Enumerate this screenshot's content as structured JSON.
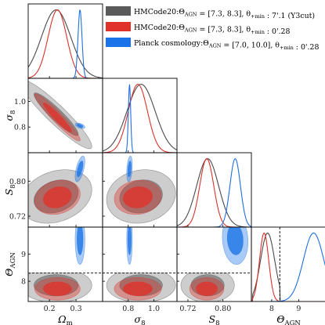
{
  "chart_data": {
    "type": "corner",
    "parameters": [
      {
        "key": "om",
        "label": "Ω",
        "sub": "m",
        "range": [
          0.12,
          0.4
        ],
        "ticks": [
          0.2,
          0.3
        ],
        "tick_labels": [
          "0.2",
          "0.3"
        ]
      },
      {
        "key": "s8",
        "label": "σ",
        "sub": "8",
        "range": [
          0.6,
          1.18
        ],
        "ticks": [
          0.8,
          1.0
        ],
        "tick_labels": [
          "0.8",
          "1.0"
        ]
      },
      {
        "key": "S8",
        "label": "S",
        "sub": "8",
        "range": [
          0.695,
          0.865
        ],
        "ticks": [
          0.72,
          0.8
        ],
        "tick_labels": [
          "0.72",
          "0.80"
        ]
      },
      {
        "key": "ag",
        "label": "Θ",
        "sub": "AGN",
        "range": [
          7.25,
          10.0
        ],
        "ticks": [
          8,
          9
        ],
        "tick_labels": [
          "8",
          "9"
        ]
      }
    ],
    "legend_location": "upper-right",
    "series": [
      {
        "name": "HMCode20:Θ_AGN = [7.3, 8.3], θ_+min : 7′.1 (Y3cut)",
        "legend_text": "HMCode20:Θ$_{AGN}$ = [7.3, 8.3], $θ_{+min}$ : 7$'$.1 (Y3cut)",
        "color": "#4a4a4a",
        "fill": "#5a5a5a",
        "mean": {
          "om": 0.225,
          "s8": 0.9,
          "S8": 0.765,
          "ag": 7.85
        },
        "sd": {
          "om": 0.055,
          "s8": 0.11,
          "S8": 0.025,
          "ag": 0.26
        },
        "corr": {
          "om-s8": -0.93,
          "om-S8": 0.25,
          "s8-S8": 0.12,
          "om-ag": 0.0,
          "s8-ag": 0.0,
          "S8-ag": 0.0
        },
        "prior_bound": {
          "ag": [
            7.3,
            8.3
          ]
        }
      },
      {
        "name": "HMCode20:Θ_AGN = [7.3, 8.3], θ_+min : 0′.28",
        "legend_text": "HMCode20:Θ$_{AGN}$ = [7.3, 8.3], $θ_{+min}$ : 0$'$.28",
        "color": "#d8322a",
        "fill": "#e0322a",
        "mean": {
          "om": 0.23,
          "s8": 0.875,
          "S8": 0.763,
          "ag": 7.72
        },
        "sd": {
          "om": 0.035,
          "s8": 0.075,
          "S8": 0.016,
          "ag": 0.17
        },
        "corr": {
          "om-s8": -0.95,
          "om-S8": 0.2,
          "s8-S8": 0.1,
          "om-ag": 0.0,
          "s8-ag": 0.0,
          "S8-ag": 0.0
        },
        "prior_bound": {
          "ag": [
            7.3,
            8.3
          ]
        }
      },
      {
        "name": "Planck cosmology:Θ_AGN = [7.0, 10.0], θ_+min : 0′.28",
        "legend_text": "Planck cosmology:Θ$_{AGN}$ = [7.0, 10.0], $θ_{+min}$ : 0$'$.28",
        "color": "#1f6fe0",
        "fill": "#1a73e8",
        "mean": {
          "om": 0.315,
          "s8": 0.81,
          "S8": 0.828,
          "ag": 9.55
        },
        "sd": {
          "om": 0.0075,
          "s8": 0.009,
          "S8": 0.012,
          "ag": 0.38
        },
        "corr": {
          "om-s8": -0.5,
          "om-S8": 0.6,
          "s8-S8": 0.3,
          "om-ag": 0.0,
          "s8-ag": 0.0,
          "S8-ag": -0.1
        },
        "prior_bound": {
          "ag": [
            7.0,
            10.0
          ]
        }
      }
    ],
    "reference_lines": [
      {
        "parameter": "ag",
        "value": 8.3,
        "style": "dashed"
      }
    ]
  }
}
